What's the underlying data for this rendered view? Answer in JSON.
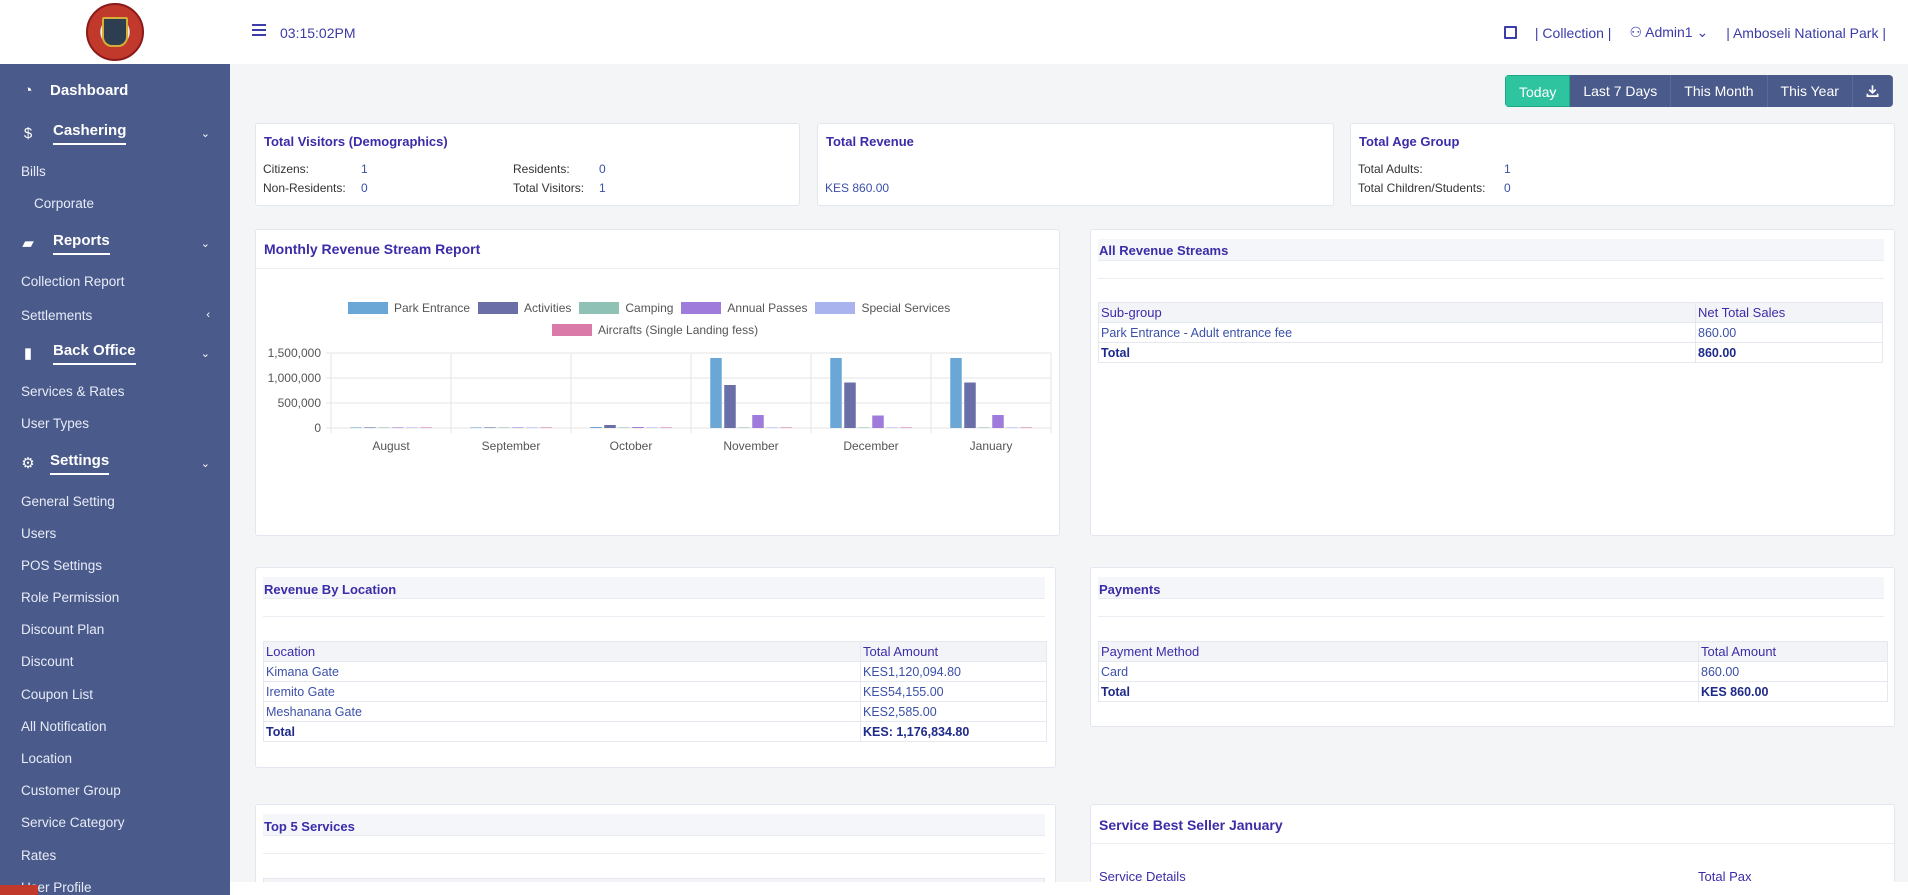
{
  "topbar": {
    "clock": "03:15:02PM",
    "collection": "| Collection |",
    "user": "Admin1",
    "park": "| Amboseli National Park |"
  },
  "sidebar": {
    "dashboard": "Dashboard",
    "cashering": "Cashering",
    "bills": "Bills",
    "corporate": "Corporate",
    "reports": "Reports",
    "collection_report": "Collection Report",
    "settlements": "Settlements",
    "back_office": "Back Office",
    "services_rates": "Services & Rates",
    "user_types": "User Types",
    "settings": "Settings",
    "settings_items": [
      "General Setting",
      "Users",
      "POS Settings",
      "Role Permission",
      "Discount Plan",
      "Discount",
      "Coupon List",
      "All Notification",
      "Location",
      "Customer Group",
      "Service Category",
      "Rates",
      "User Profile"
    ]
  },
  "period": {
    "today": "Today",
    "last7": "Last 7 Days",
    "month": "This Month",
    "year": "This Year"
  },
  "visitors": {
    "title": "Total Visitors (Demographics)",
    "citizens_label": "Citizens:",
    "citizens": "1",
    "residents_label": "Residents:",
    "residents": "0",
    "non_residents_label": "Non-Residents:",
    "non_residents": "0",
    "total_label": "Total Visitors:",
    "total": "1"
  },
  "revenue": {
    "title": "Total Revenue",
    "value": "KES 860.00"
  },
  "age": {
    "title": "Total Age Group",
    "adults_label": "Total Adults:",
    "adults": "1",
    "children_label": "Total Children/Students:",
    "children": "0"
  },
  "monthly": {
    "title": "Monthly Revenue Stream Report"
  },
  "chart_data": {
    "type": "bar",
    "categories": [
      "August",
      "September",
      "October",
      "November",
      "December",
      "January"
    ],
    "series": [
      {
        "name": "Park Entrance",
        "color": "#6aa7d6",
        "values": [
          0,
          0,
          10000,
          1400000,
          1400000,
          1400000
        ]
      },
      {
        "name": "Activities",
        "color": "#6b6fa8",
        "values": [
          0,
          0,
          60000,
          860000,
          910000,
          910000
        ]
      },
      {
        "name": "Camping",
        "color": "#8fc1b5",
        "values": [
          0,
          0,
          0,
          0,
          0,
          0
        ]
      },
      {
        "name": "Annual Passes",
        "color": "#9f7bdb",
        "values": [
          0,
          0,
          20000,
          260000,
          250000,
          260000
        ]
      },
      {
        "name": "Special Services",
        "color": "#a9b4ef",
        "values": [
          0,
          0,
          0,
          0,
          0,
          0
        ]
      },
      {
        "name": "Aircrafts (Single Landing fess)",
        "color": "#d97aa9",
        "values": [
          0,
          0,
          0,
          0,
          0,
          0
        ]
      }
    ],
    "yticks": [
      "1,500,000",
      "1,000,000",
      "500,000",
      "0"
    ],
    "ylim": [
      0,
      1500000
    ],
    "grid": true,
    "legend": "top"
  },
  "streams": {
    "title": "All Revenue Streams",
    "headers": [
      "Sub-group",
      "Net Total Sales"
    ],
    "rows": [
      [
        "Park Entrance - Adult entrance fee",
        "860.00"
      ]
    ],
    "total_label": "Total",
    "total": "860.00"
  },
  "location": {
    "title": "Revenue By Location",
    "headers": [
      "Location",
      "Total Amount"
    ],
    "rows": [
      [
        "Kimana Gate",
        "KES1,120,094.80"
      ],
      [
        "Iremito Gate",
        "KES54,155.00"
      ],
      [
        "Meshanana Gate",
        "KES2,585.00"
      ]
    ],
    "total_label": "Total",
    "total": "KES: 1,176,834.80"
  },
  "payments": {
    "title": "Payments",
    "headers": [
      "Payment Method",
      "Total Amount"
    ],
    "rows": [
      [
        "Card",
        "860.00"
      ]
    ],
    "total_label": "Total",
    "total": "KES 860.00"
  },
  "top5": {
    "title": "Top 5 Services"
  },
  "best": {
    "title": "Service Best Seller January",
    "headers": [
      "Service Details",
      "Total Pax"
    ]
  }
}
